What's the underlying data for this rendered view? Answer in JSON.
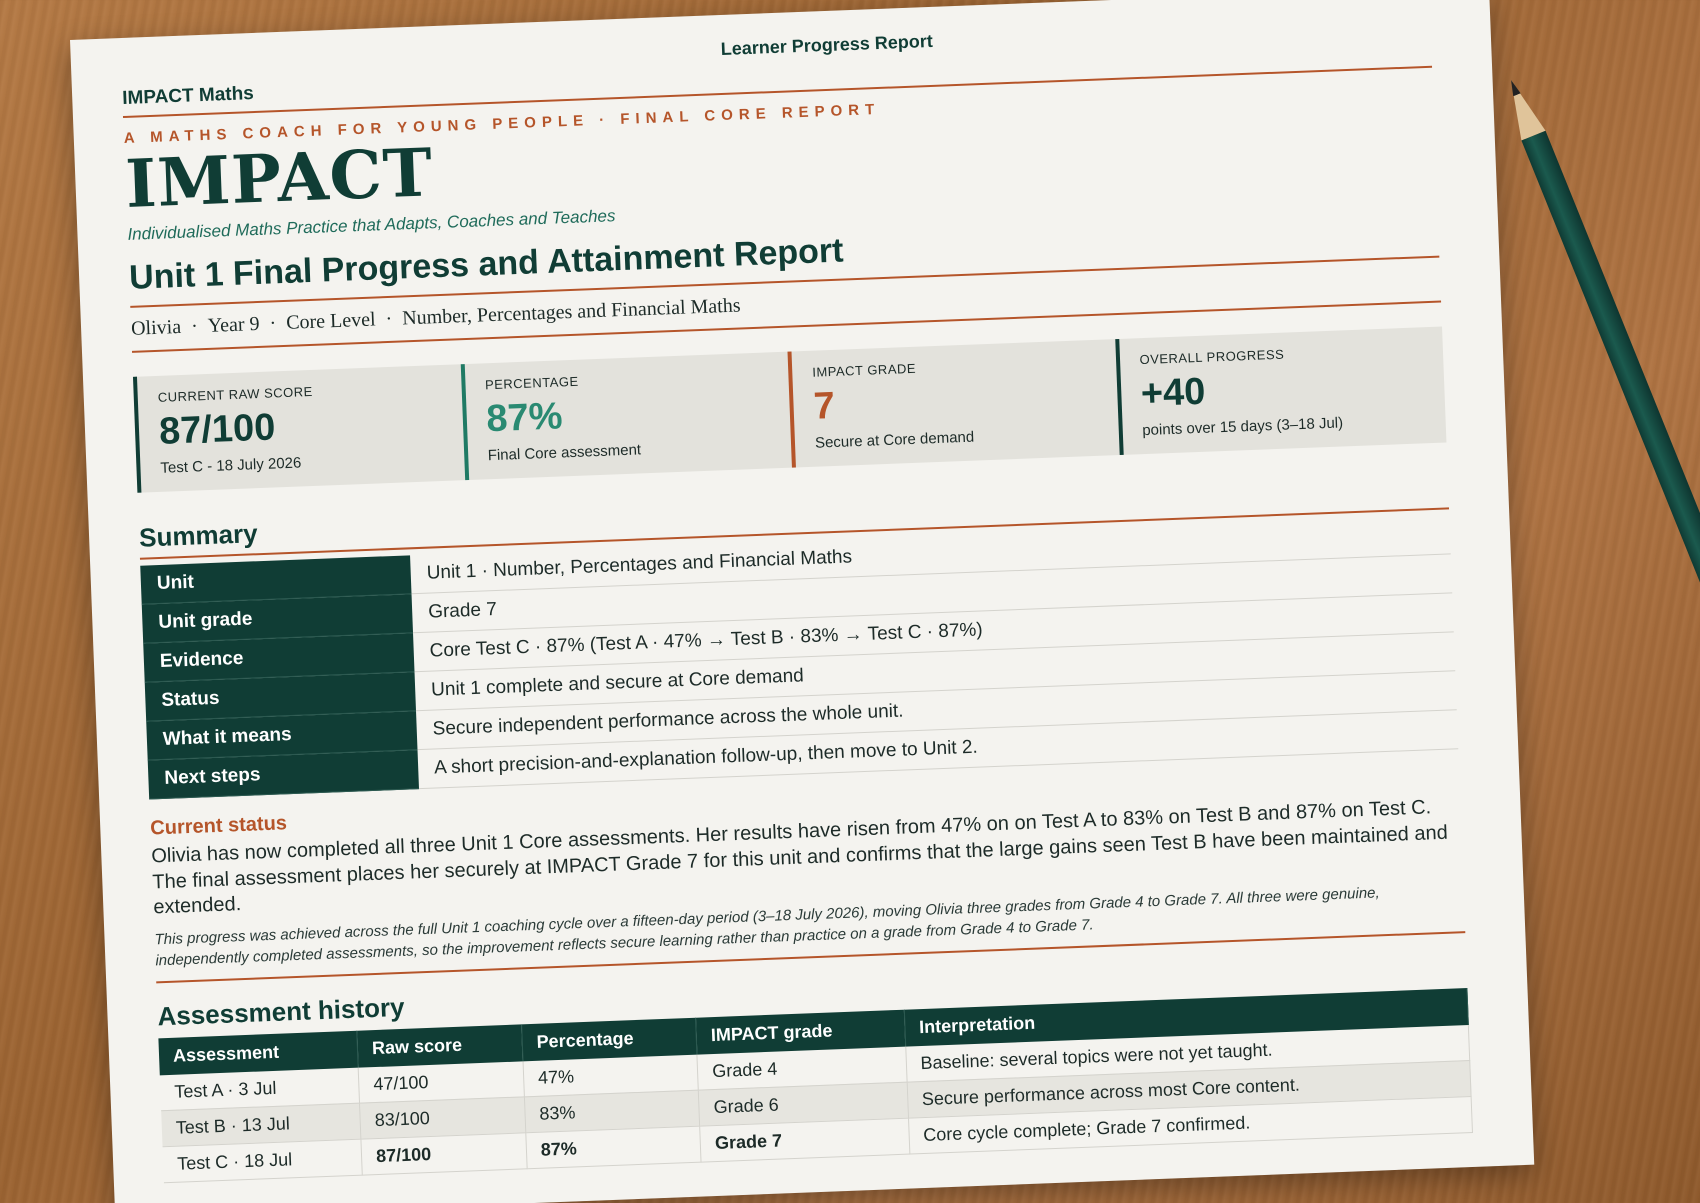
{
  "header": {
    "brand": "IMPACT Maths",
    "report_label": "Learner Progress Report",
    "tagline": "A MATHS COACH FOR YOUNG PEOPLE   ·   FINAL CORE REPORT",
    "logo": "IMPACT",
    "subtitle": "Individualised Maths Practice that Adapts, Coaches and Teaches",
    "title": "Unit 1 Final Progress and Attainment Report"
  },
  "meta": {
    "student": "Olivia",
    "year": "Year 9",
    "level": "Core Level",
    "unit": "Number, Percentages and Financial Maths",
    "sep": "·"
  },
  "kpis": [
    {
      "label": "Current raw score",
      "value": "87/100",
      "note": "Test C - 18 July 2026"
    },
    {
      "label": "Percentage",
      "value": "87%",
      "note": "Final Core assessment"
    },
    {
      "label": "IMPACT grade",
      "value": "7",
      "note": "Secure at Core demand"
    },
    {
      "label": "Overall progress",
      "value": "+40",
      "note": "points over 15 days (3–18 Jul)"
    }
  ],
  "summary": {
    "heading": "Summary",
    "rows": [
      {
        "k": "Unit",
        "v": "Unit 1 · Number, Percentages and Financial Maths"
      },
      {
        "k": "Unit grade",
        "v": "Grade 7"
      },
      {
        "k": "Evidence",
        "v": "Core Test C · 87%   (Test A · 47% → Test B · 83% → Test C · 87%)"
      },
      {
        "k": "Status",
        "v": "Unit 1 complete and secure at Core demand"
      },
      {
        "k": "What it means",
        "v": "Secure independent performance across the whole unit."
      },
      {
        "k": "Next steps",
        "v": "A short precision-and-explanation follow-up, then move to Unit 2."
      }
    ]
  },
  "status": {
    "heading": "Current status",
    "body": "Olivia has now completed all three Unit 1 Core assessments. Her results have risen from 47% on on Test A to 83% on Test B and 87% on Test C. The final assessment places her securely at IMPACT Grade 7 for this unit and confirms that the large gains seen Test B have been maintained and extended.",
    "note": "This progress was achieved across the full Unit 1 coaching cycle over a fifteen-day period (3–18 July 2026), moving Olivia three grades from Grade 4 to Grade 7. All three were genuine, independently completed assessments, so the improvement reflects secure learning rather than practice on a grade from Grade 4 to Grade 7."
  },
  "history": {
    "heading": "Assessment history",
    "columns": [
      "Assessment",
      "Raw score",
      "Percentage",
      "IMPACT grade",
      "Interpretation"
    ],
    "rows": [
      {
        "assessment": "Test A · 3 Jul",
        "raw": "47/100",
        "pct": "47%",
        "grade": "Grade 4",
        "interp": "Baseline: several topics were not yet taught."
      },
      {
        "assessment": "Test B · 13 Jul",
        "raw": "83/100",
        "pct": "83%",
        "grade": "Grade 6",
        "interp": "Secure performance across most Core content."
      },
      {
        "assessment": "Test C · 18 Jul",
        "raw": "87/100",
        "pct": "87%",
        "grade": "Grade 7",
        "interp": "Core cycle complete; Grade 7 confirmed."
      }
    ]
  },
  "colors": {
    "accent_green": "#103d35",
    "accent_orange": "#b5552a",
    "teal": "#2a8a72"
  }
}
